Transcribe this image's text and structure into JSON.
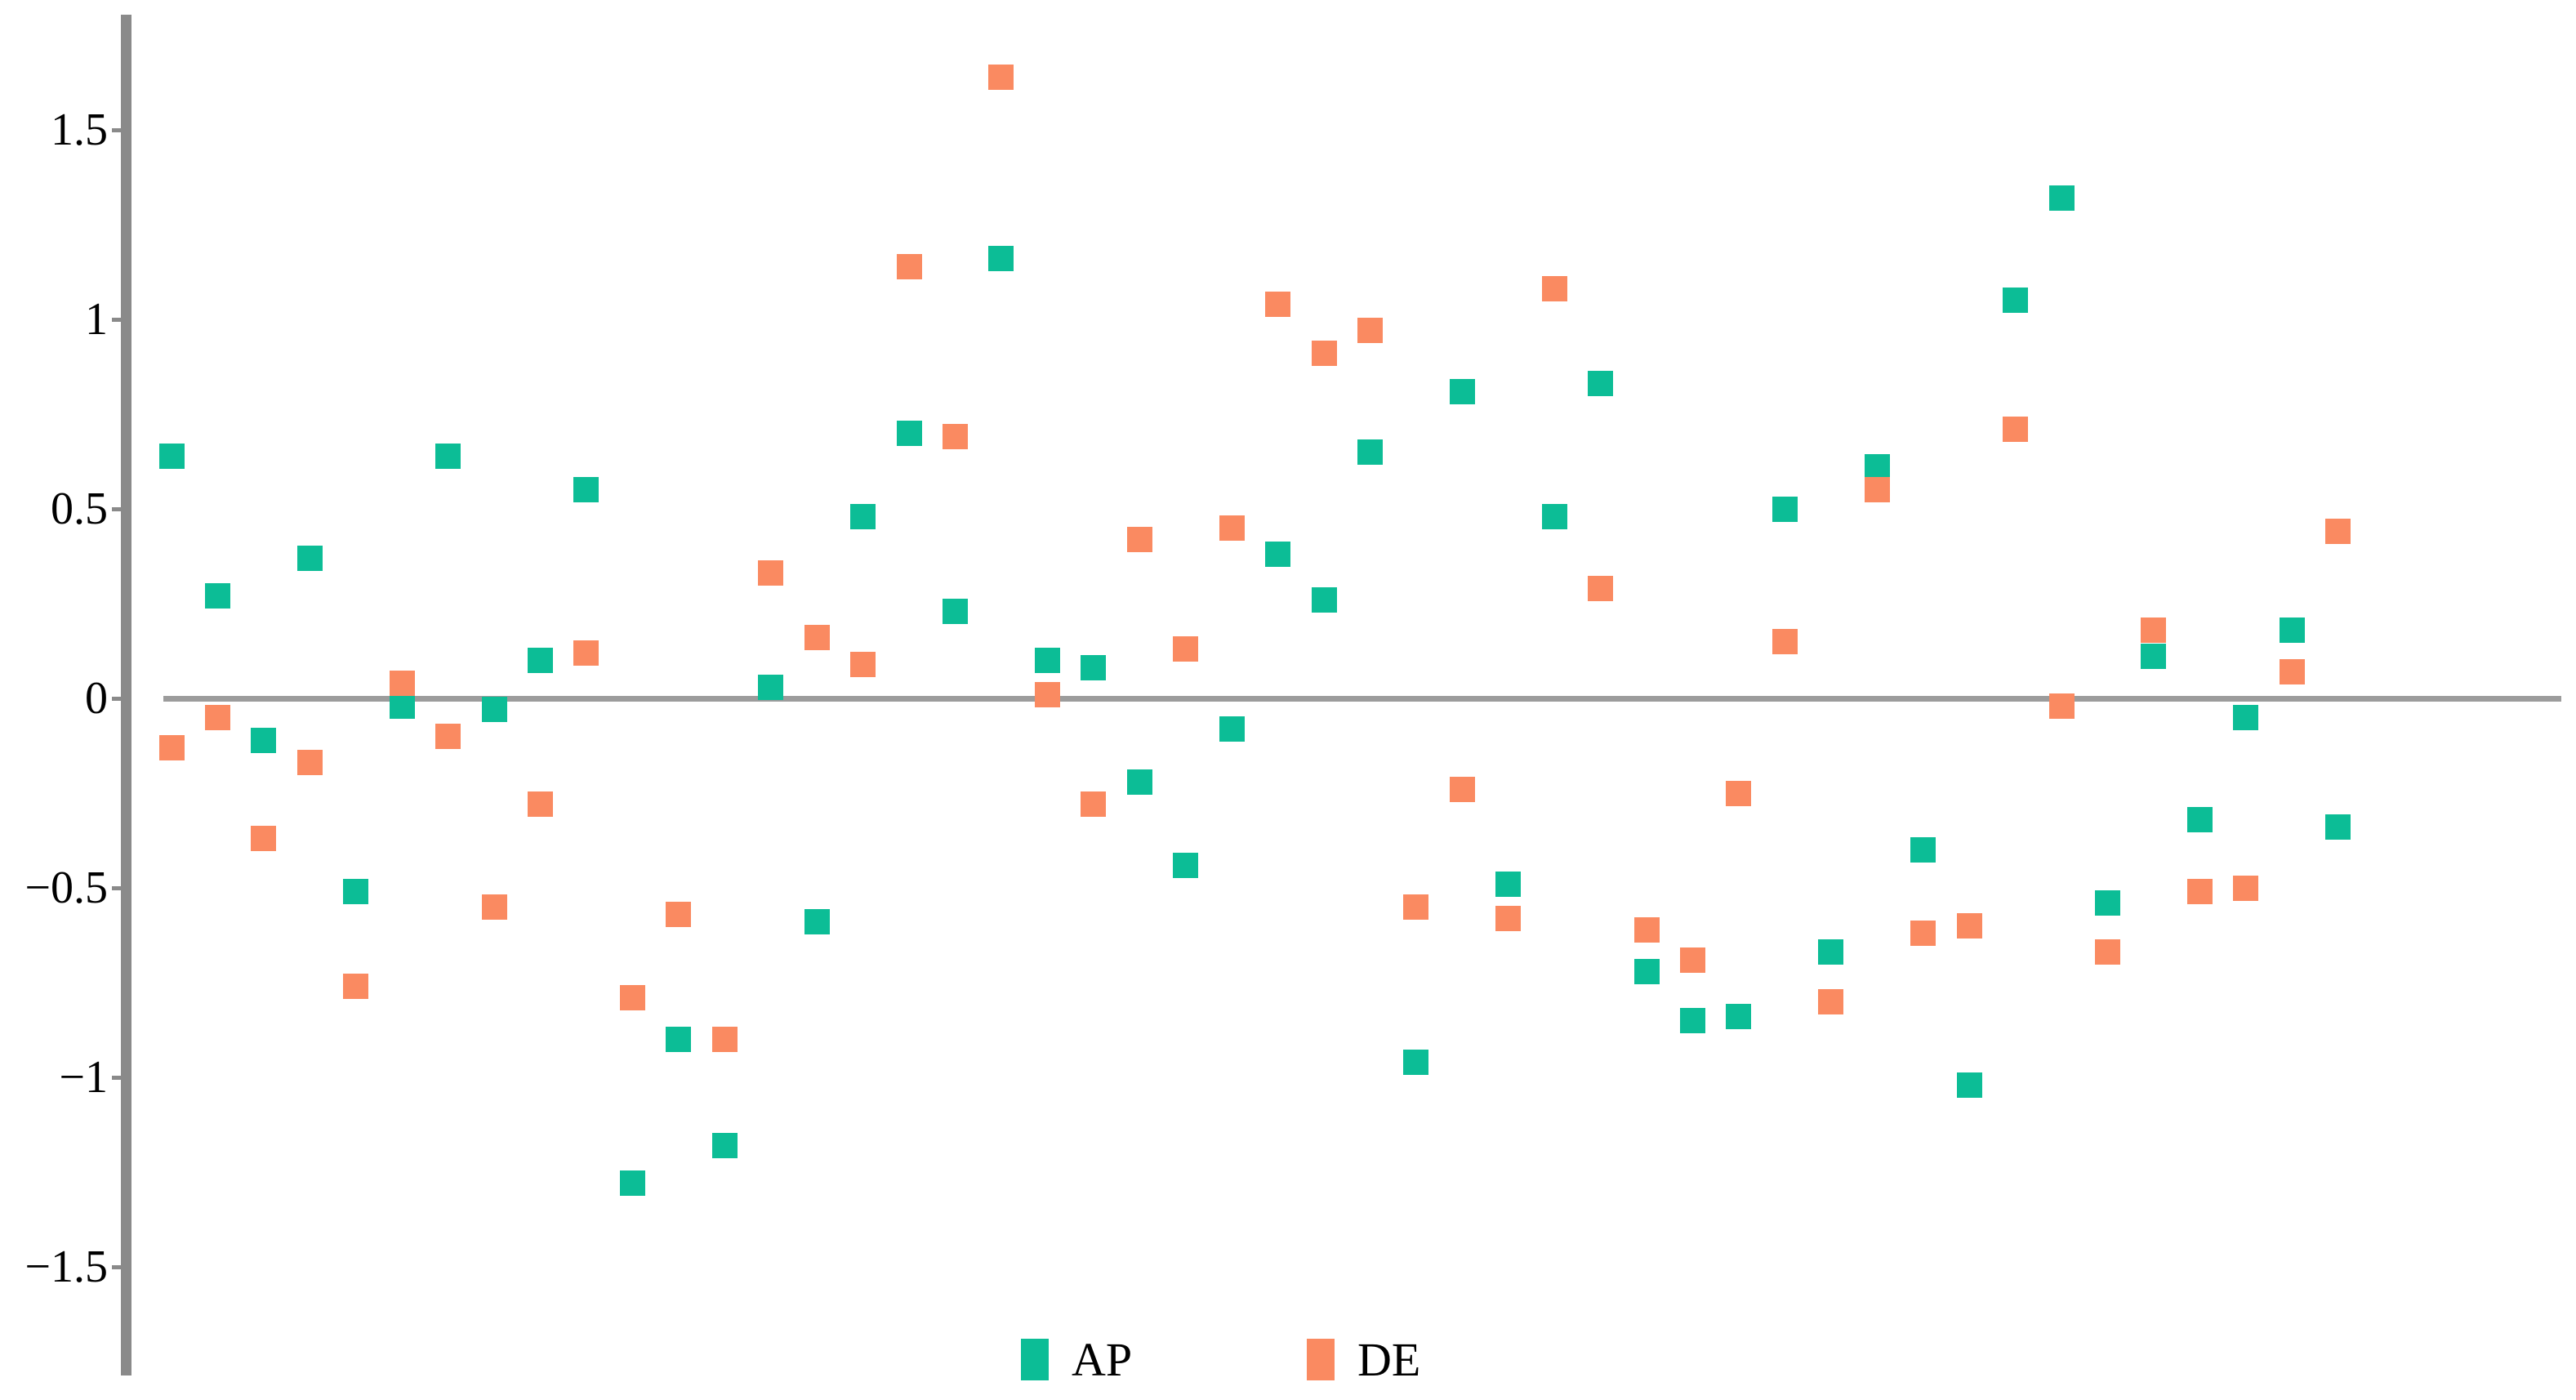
{
  "figure": {
    "background": "#ffffff",
    "axis_color": "#8a8a8a",
    "zero_line_color": "#9c9c9c",
    "text_color": "#000000"
  },
  "y_axis": {
    "ticks": [
      {
        "value": 1.5,
        "label": "1.5"
      },
      {
        "value": 1.0,
        "label": "1"
      },
      {
        "value": 0.5,
        "label": "0.5"
      },
      {
        "value": 0.0,
        "label": "0"
      },
      {
        "value": -0.5,
        "label": "−0.5"
      },
      {
        "value": -1.0,
        "label": "−1"
      },
      {
        "value": -1.5,
        "label": "−1.5"
      }
    ]
  },
  "legend": {
    "items": [
      {
        "label": "AP",
        "color": "#0cbd96"
      },
      {
        "label": "DE",
        "color": "#fa8a61"
      }
    ]
  },
  "chart_data": {
    "type": "scatter",
    "marker": "square",
    "title": "",
    "xlabel": "",
    "ylabel": "",
    "x_axis_labels": "none",
    "x": [
      1,
      2,
      3,
      4,
      5,
      6,
      7,
      8,
      9,
      10,
      11,
      12,
      13,
      14,
      15,
      16,
      17,
      18,
      19,
      20,
      21,
      22,
      23,
      24,
      25,
      26,
      27,
      28,
      29,
      30,
      31,
      32,
      33,
      34,
      35,
      36,
      37,
      38,
      39,
      40,
      41,
      42,
      43,
      44,
      45,
      46,
      47,
      48
    ],
    "series": [
      {
        "name": "AP",
        "color": "#0cbd96",
        "values": [
          0.64,
          0.27,
          -0.11,
          0.37,
          -0.51,
          -0.02,
          0.64,
          -0.03,
          0.1,
          0.55,
          -1.28,
          -0.9,
          -1.18,
          0.03,
          -0.59,
          0.48,
          0.7,
          0.23,
          1.16,
          0.1,
          0.08,
          -0.22,
          -0.44,
          -0.08,
          0.38,
          0.26,
          0.65,
          -0.96,
          0.81,
          -0.49,
          0.48,
          0.83,
          -0.72,
          -0.85,
          -0.84,
          0.5,
          -0.67,
          0.61,
          -0.4,
          -1.02,
          1.05,
          1.32,
          -0.54,
          0.11,
          -0.32,
          -0.05,
          0.18,
          -0.34
        ]
      },
      {
        "name": "DE",
        "color": "#fa8a61",
        "values": [
          -0.13,
          -0.05,
          -0.37,
          -0.17,
          -0.76,
          0.04,
          -0.1,
          -0.55,
          -0.28,
          0.12,
          -0.79,
          -0.57,
          -0.9,
          0.33,
          0.16,
          0.09,
          1.14,
          0.69,
          1.64,
          0.01,
          -0.28,
          0.42,
          0.13,
          0.45,
          1.04,
          0.91,
          0.97,
          -0.55,
          -0.24,
          -0.58,
          1.08,
          0.29,
          -0.61,
          -0.69,
          -0.25,
          0.15,
          -0.8,
          0.55,
          -0.62,
          -0.6,
          0.71,
          -0.02,
          -0.67,
          0.18,
          -0.51,
          -0.5,
          0.07,
          0.44
        ]
      }
    ],
    "ylim": [
      -1.75,
      1.85
    ],
    "yticks": [
      1.5,
      1,
      0.5,
      0,
      -0.5,
      -1,
      -1.5
    ],
    "zero_line": true,
    "grid": false,
    "legend_position": "bottom-center"
  }
}
